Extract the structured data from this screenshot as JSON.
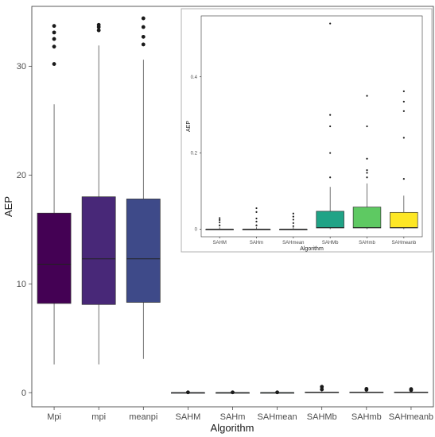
{
  "chart_data": [
    {
      "type": "boxplot",
      "xlabel": "Algorithm",
      "ylabel": "AEP",
      "ylim": [
        -1.3,
        35.5
      ],
      "yticks": [
        0,
        10,
        20,
        30
      ],
      "categories": [
        "Mpi",
        "mpi",
        "meanpi",
        "SAHM",
        "SAHm",
        "SAHmean",
        "SAHMb",
        "SAHmb",
        "SAHmeanb"
      ],
      "boxes": [
        {
          "category": "Mpi",
          "whisker_low": 2.6,
          "q1": 8.2,
          "median": 11.8,
          "q3": 16.5,
          "whisker_high": 26.5,
          "outliers": [
            30.2,
            31.8,
            32.5,
            33.1,
            33.7
          ],
          "fill": "#440154"
        },
        {
          "category": "mpi",
          "whisker_low": 2.6,
          "q1": 8.1,
          "median": 12.3,
          "q3": 18.0,
          "whisker_high": 31.9,
          "outliers": [
            33.3,
            33.6,
            33.8
          ],
          "fill": "#482878"
        },
        {
          "category": "meanpi",
          "whisker_low": 3.1,
          "q1": 8.3,
          "median": 12.3,
          "q3": 17.8,
          "whisker_high": 30.6,
          "outliers": [
            32.0,
            32.7,
            33.6,
            34.4
          ],
          "fill": "#3e4a89"
        },
        {
          "category": "SAHM",
          "whisker_low": 0,
          "q1": 0,
          "median": 0,
          "q3": 0,
          "whisker_high": 0.01,
          "outliers": [
            0.03
          ],
          "fill": "#31688e"
        },
        {
          "category": "SAHm",
          "whisker_low": 0,
          "q1": 0,
          "median": 0,
          "q3": 0,
          "whisker_high": 0.01,
          "outliers": [
            0.03
          ],
          "fill": "#26828e"
        },
        {
          "category": "SAHmean",
          "whisker_low": 0,
          "q1": 0,
          "median": 0,
          "q3": 0,
          "whisker_high": 0.01,
          "outliers": [
            0.03
          ],
          "fill": "#1f9e89"
        },
        {
          "category": "SAHMb",
          "whisker_low": 0,
          "q1": 0.01,
          "median": 0.02,
          "q3": 0.05,
          "whisker_high": 0.11,
          "outliers": [
            0.3,
            0.54
          ],
          "fill": "#35b779"
        },
        {
          "category": "SAHmb",
          "whisker_low": 0,
          "q1": 0.01,
          "median": 0.02,
          "q3": 0.05,
          "whisker_high": 0.12,
          "outliers": [
            0.27,
            0.35
          ],
          "fill": "#6ece58"
        },
        {
          "category": "SAHmeanb",
          "whisker_low": 0,
          "q1": 0.01,
          "median": 0.02,
          "q3": 0.05,
          "whisker_high": 0.09,
          "outliers": [
            0.24,
            0.33
          ],
          "fill": "#fde725"
        }
      ]
    },
    {
      "type": "boxplot",
      "xlabel": "Algorithm",
      "ylabel": "AEP",
      "ylim": [
        -0.02,
        0.56
      ],
      "yticks": [
        0.0,
        0.2,
        0.4
      ],
      "categories": [
        "SAHM",
        "SAHm",
        "SAHmean",
        "SAHMb",
        "SAHmb",
        "SAHmeanb"
      ],
      "boxes": [
        {
          "category": "SAHM",
          "whisker_low": 0,
          "q1": 0,
          "median": 0,
          "q3": 0,
          "whisker_high": 0.005,
          "outliers": [
            0.01,
            0.018,
            0.024,
            0.029
          ],
          "fill": "#440154"
        },
        {
          "category": "SAHm",
          "whisker_low": 0,
          "q1": 0,
          "median": 0,
          "q3": 0,
          "whisker_high": 0.005,
          "outliers": [
            0.01,
            0.02,
            0.028,
            0.045,
            0.055
          ],
          "fill": "#3b528b"
        },
        {
          "category": "SAHmean",
          "whisker_low": 0,
          "q1": 0,
          "median": 0,
          "q3": 0,
          "whisker_high": 0.005,
          "outliers": [
            0.008,
            0.016,
            0.025,
            0.033,
            0.041
          ],
          "fill": "#21908d"
        },
        {
          "category": "SAHMb",
          "whisker_low": 0,
          "q1": 0.003,
          "median": 0.004,
          "q3": 0.047,
          "whisker_high": 0.111,
          "outliers": [
            0.136,
            0.2,
            0.27,
            0.3,
            0.54
          ],
          "fill": "#20a386"
        },
        {
          "category": "SAHmb",
          "whisker_low": 0,
          "q1": 0.003,
          "median": 0.004,
          "q3": 0.058,
          "whisker_high": 0.12,
          "outliers": [
            0.136,
            0.148,
            0.155,
            0.185,
            0.27,
            0.35
          ],
          "fill": "#5ec962"
        },
        {
          "category": "SAHmeanb",
          "whisker_low": 0,
          "q1": 0.003,
          "median": 0.004,
          "q3": 0.044,
          "whisker_high": 0.088,
          "outliers": [
            0.132,
            0.24,
            0.31,
            0.335,
            0.362
          ],
          "fill": "#fde725"
        }
      ]
    }
  ]
}
